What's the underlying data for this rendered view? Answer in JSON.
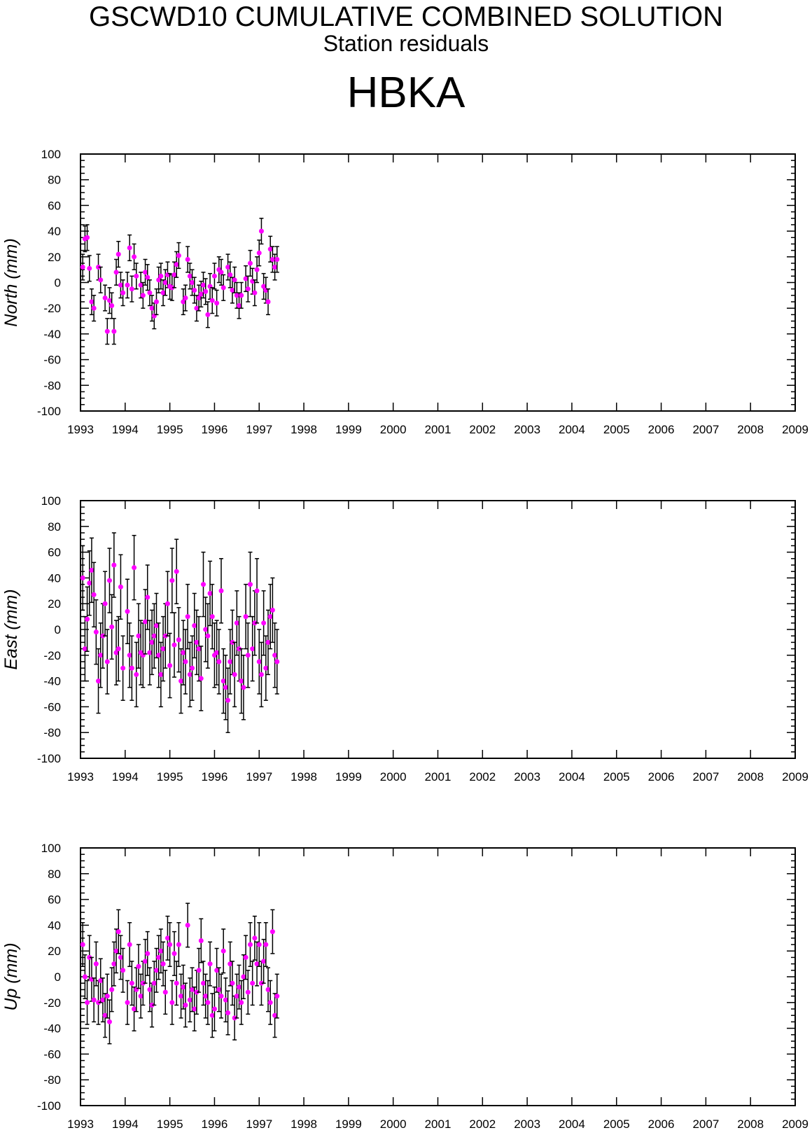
{
  "header": {
    "title": "GSCWD10 CUMULATIVE COMBINED SOLUTION",
    "subtitle": "Station residuals",
    "station": "HBKA"
  },
  "colors": {
    "point": "#ff00ff",
    "error_bar": "#000000",
    "axis": "#000000"
  },
  "chart_data": [
    {
      "type": "scatter",
      "ylabel": "North (mm)",
      "ylim": [
        -100,
        100
      ],
      "xlim": [
        1993,
        2009
      ],
      "yticks": [
        -100,
        -80,
        -60,
        -40,
        -20,
        0,
        20,
        40,
        60,
        80,
        100
      ],
      "xticks": [
        1993,
        1994,
        1995,
        1996,
        1997,
        1998,
        1999,
        2000,
        2001,
        2002,
        2003,
        2004,
        2005,
        2006,
        2007,
        2008,
        2009
      ],
      "grid": false,
      "error_bar_mm": 10,
      "x": [
        1993.05,
        1993.1,
        1993.15,
        1993.2,
        1993.25,
        1993.3,
        1993.4,
        1993.45,
        1993.55,
        1993.6,
        1993.65,
        1993.7,
        1993.75,
        1993.8,
        1993.85,
        1993.9,
        1993.95,
        1994.05,
        1994.1,
        1994.15,
        1994.2,
        1994.25,
        1994.35,
        1994.4,
        1994.45,
        1994.5,
        1994.55,
        1994.6,
        1994.65,
        1994.7,
        1994.75,
        1994.8,
        1994.85,
        1994.9,
        1994.95,
        1995.0,
        1995.05,
        1995.1,
        1995.15,
        1995.2,
        1995.3,
        1995.35,
        1995.4,
        1995.45,
        1995.5,
        1995.55,
        1995.6,
        1995.65,
        1995.7,
        1995.75,
        1995.8,
        1995.85,
        1995.9,
        1995.95,
        1996.0,
        1996.05,
        1996.1,
        1996.15,
        1996.2,
        1996.3,
        1996.35,
        1996.4,
        1996.45,
        1996.5,
        1996.55,
        1996.6,
        1996.7,
        1996.75,
        1996.8,
        1996.85,
        1996.9,
        1996.95,
        1997.0,
        1997.05,
        1997.1,
        1997.15,
        1997.2,
        1997.25,
        1997.3,
        1997.35,
        1997.4
      ],
      "values": [
        12,
        34,
        35,
        11,
        -15,
        -20,
        12,
        2,
        -12,
        -38,
        -14,
        -18,
        -38,
        8,
        22,
        -2,
        -8,
        -2,
        27,
        -5,
        20,
        5,
        -2,
        -10,
        8,
        4,
        -8,
        -20,
        -26,
        -15,
        2,
        5,
        -8,
        0,
        6,
        -3,
        -4,
        6,
        14,
        21,
        -15,
        -12,
        18,
        5,
        0,
        -6,
        -20,
        -12,
        -9,
        -2,
        -7,
        -25,
        -3,
        -14,
        5,
        -16,
        10,
        8,
        -4,
        12,
        6,
        -6,
        2,
        -10,
        -18,
        -10,
        3,
        -5,
        15,
        1,
        -8,
        10,
        23,
        40,
        -3,
        -6,
        -15,
        26,
        18,
        12,
        18
      ]
    },
    {
      "type": "scatter",
      "ylabel": "East (mm)",
      "ylim": [
        -100,
        100
      ],
      "xlim": [
        1993,
        2009
      ],
      "yticks": [
        -100,
        -80,
        -60,
        -40,
        -20,
        0,
        20,
        40,
        60,
        80,
        100
      ],
      "xticks": [
        1993,
        1994,
        1995,
        1996,
        1997,
        1998,
        1999,
        2000,
        2001,
        2002,
        2003,
        2004,
        2005,
        2006,
        2007,
        2008,
        2009
      ],
      "grid": false,
      "error_bar_mm": 25,
      "x": [
        1993.05,
        1993.1,
        1993.15,
        1993.2,
        1993.25,
        1993.3,
        1993.35,
        1993.4,
        1993.45,
        1993.5,
        1993.55,
        1993.6,
        1993.65,
        1993.7,
        1993.75,
        1993.8,
        1993.85,
        1993.9,
        1993.95,
        1994.05,
        1994.1,
        1994.15,
        1994.2,
        1994.25,
        1994.3,
        1994.35,
        1994.4,
        1994.45,
        1994.5,
        1994.55,
        1994.6,
        1994.65,
        1994.7,
        1994.75,
        1994.8,
        1994.85,
        1994.9,
        1994.95,
        1995.0,
        1995.05,
        1995.1,
        1995.15,
        1995.2,
        1995.25,
        1995.3,
        1995.35,
        1995.4,
        1995.45,
        1995.5,
        1995.55,
        1995.6,
        1995.65,
        1995.7,
        1995.75,
        1995.8,
        1995.85,
        1995.9,
        1995.95,
        1996.0,
        1996.05,
        1996.1,
        1996.15,
        1996.2,
        1996.25,
        1996.3,
        1996.35,
        1996.4,
        1996.45,
        1996.5,
        1996.55,
        1996.6,
        1996.65,
        1996.7,
        1996.75,
        1996.8,
        1996.85,
        1996.9,
        1996.95,
        1997.0,
        1997.05,
        1997.1,
        1997.15,
        1997.2,
        1997.25,
        1997.3,
        1997.35,
        1997.4
      ],
      "values": [
        40,
        -15,
        8,
        36,
        46,
        27,
        -2,
        -40,
        -20,
        -5,
        20,
        -25,
        38,
        2,
        50,
        -18,
        -15,
        33,
        -30,
        14,
        -20,
        -30,
        48,
        -35,
        -5,
        -18,
        -20,
        6,
        25,
        -18,
        -10,
        -5,
        3,
        -20,
        -35,
        -15,
        -5,
        20,
        -28,
        38,
        -12,
        45,
        -8,
        -40,
        -18,
        -25,
        10,
        -35,
        -30,
        3,
        -10,
        -15,
        -38,
        35,
        0,
        -5,
        28,
        10,
        -20,
        -18,
        -25,
        30,
        -40,
        -45,
        -55,
        -25,
        -10,
        -35,
        5,
        -15,
        -40,
        -45,
        10,
        -20,
        35,
        -15,
        5,
        30,
        -25,
        -35,
        5,
        -30,
        -10,
        10,
        15,
        -20,
        -25
      ]
    },
    {
      "type": "scatter",
      "ylabel": "Up (mm)",
      "ylim": [
        -100,
        100
      ],
      "xlim": [
        1993,
        2009
      ],
      "yticks": [
        -100,
        -80,
        -60,
        -40,
        -20,
        0,
        20,
        40,
        60,
        80,
        100
      ],
      "xticks": [
        1993,
        1994,
        1995,
        1996,
        1997,
        1998,
        1999,
        2000,
        2001,
        2002,
        2003,
        2004,
        2005,
        2006,
        2007,
        2008,
        2009
      ],
      "grid": false,
      "error_bar_mm": 17,
      "x": [
        1993.05,
        1993.1,
        1993.15,
        1993.2,
        1993.25,
        1993.3,
        1993.35,
        1993.4,
        1993.45,
        1993.5,
        1993.55,
        1993.6,
        1993.65,
        1993.7,
        1993.75,
        1993.8,
        1993.85,
        1993.9,
        1993.95,
        1994.05,
        1994.1,
        1994.15,
        1994.2,
        1994.25,
        1994.3,
        1994.35,
        1994.4,
        1994.45,
        1994.5,
        1994.55,
        1994.6,
        1994.65,
        1994.7,
        1994.75,
        1994.8,
        1994.85,
        1994.9,
        1994.95,
        1995.0,
        1995.05,
        1995.1,
        1995.15,
        1995.2,
        1995.25,
        1995.3,
        1995.35,
        1995.4,
        1995.45,
        1995.5,
        1995.55,
        1995.6,
        1995.65,
        1995.7,
        1995.75,
        1995.8,
        1995.85,
        1995.9,
        1995.95,
        1996.0,
        1996.05,
        1996.1,
        1996.15,
        1996.2,
        1996.25,
        1996.3,
        1996.35,
        1996.4,
        1996.45,
        1996.5,
        1996.55,
        1996.6,
        1996.65,
        1996.7,
        1996.75,
        1996.8,
        1996.85,
        1996.9,
        1996.95,
        1997.0,
        1997.05,
        1997.1,
        1997.15,
        1997.2,
        1997.25,
        1997.3,
        1997.35,
        1997.4
      ],
      "values": [
        25,
        0,
        -20,
        15,
        -2,
        -18,
        10,
        -20,
        -3,
        -18,
        -30,
        -15,
        -35,
        -10,
        10,
        20,
        35,
        15,
        5,
        -20,
        25,
        -5,
        -25,
        -10,
        8,
        -15,
        -5,
        12,
        18,
        -10,
        -22,
        -5,
        5,
        15,
        20,
        10,
        -12,
        30,
        25,
        -20,
        18,
        -5,
        25,
        -15,
        -8,
        -22,
        40,
        -18,
        -10,
        -25,
        -12,
        5,
        28,
        -5,
        -15,
        -20,
        10,
        -30,
        -25,
        5,
        -10,
        -15,
        20,
        -18,
        -28,
        10,
        -5,
        -32,
        -15,
        -8,
        -20,
        0,
        15,
        -12,
        25,
        -5,
        30,
        10,
        25,
        -5,
        12,
        25,
        -10,
        -20,
        35,
        -30,
        -15
      ]
    }
  ]
}
